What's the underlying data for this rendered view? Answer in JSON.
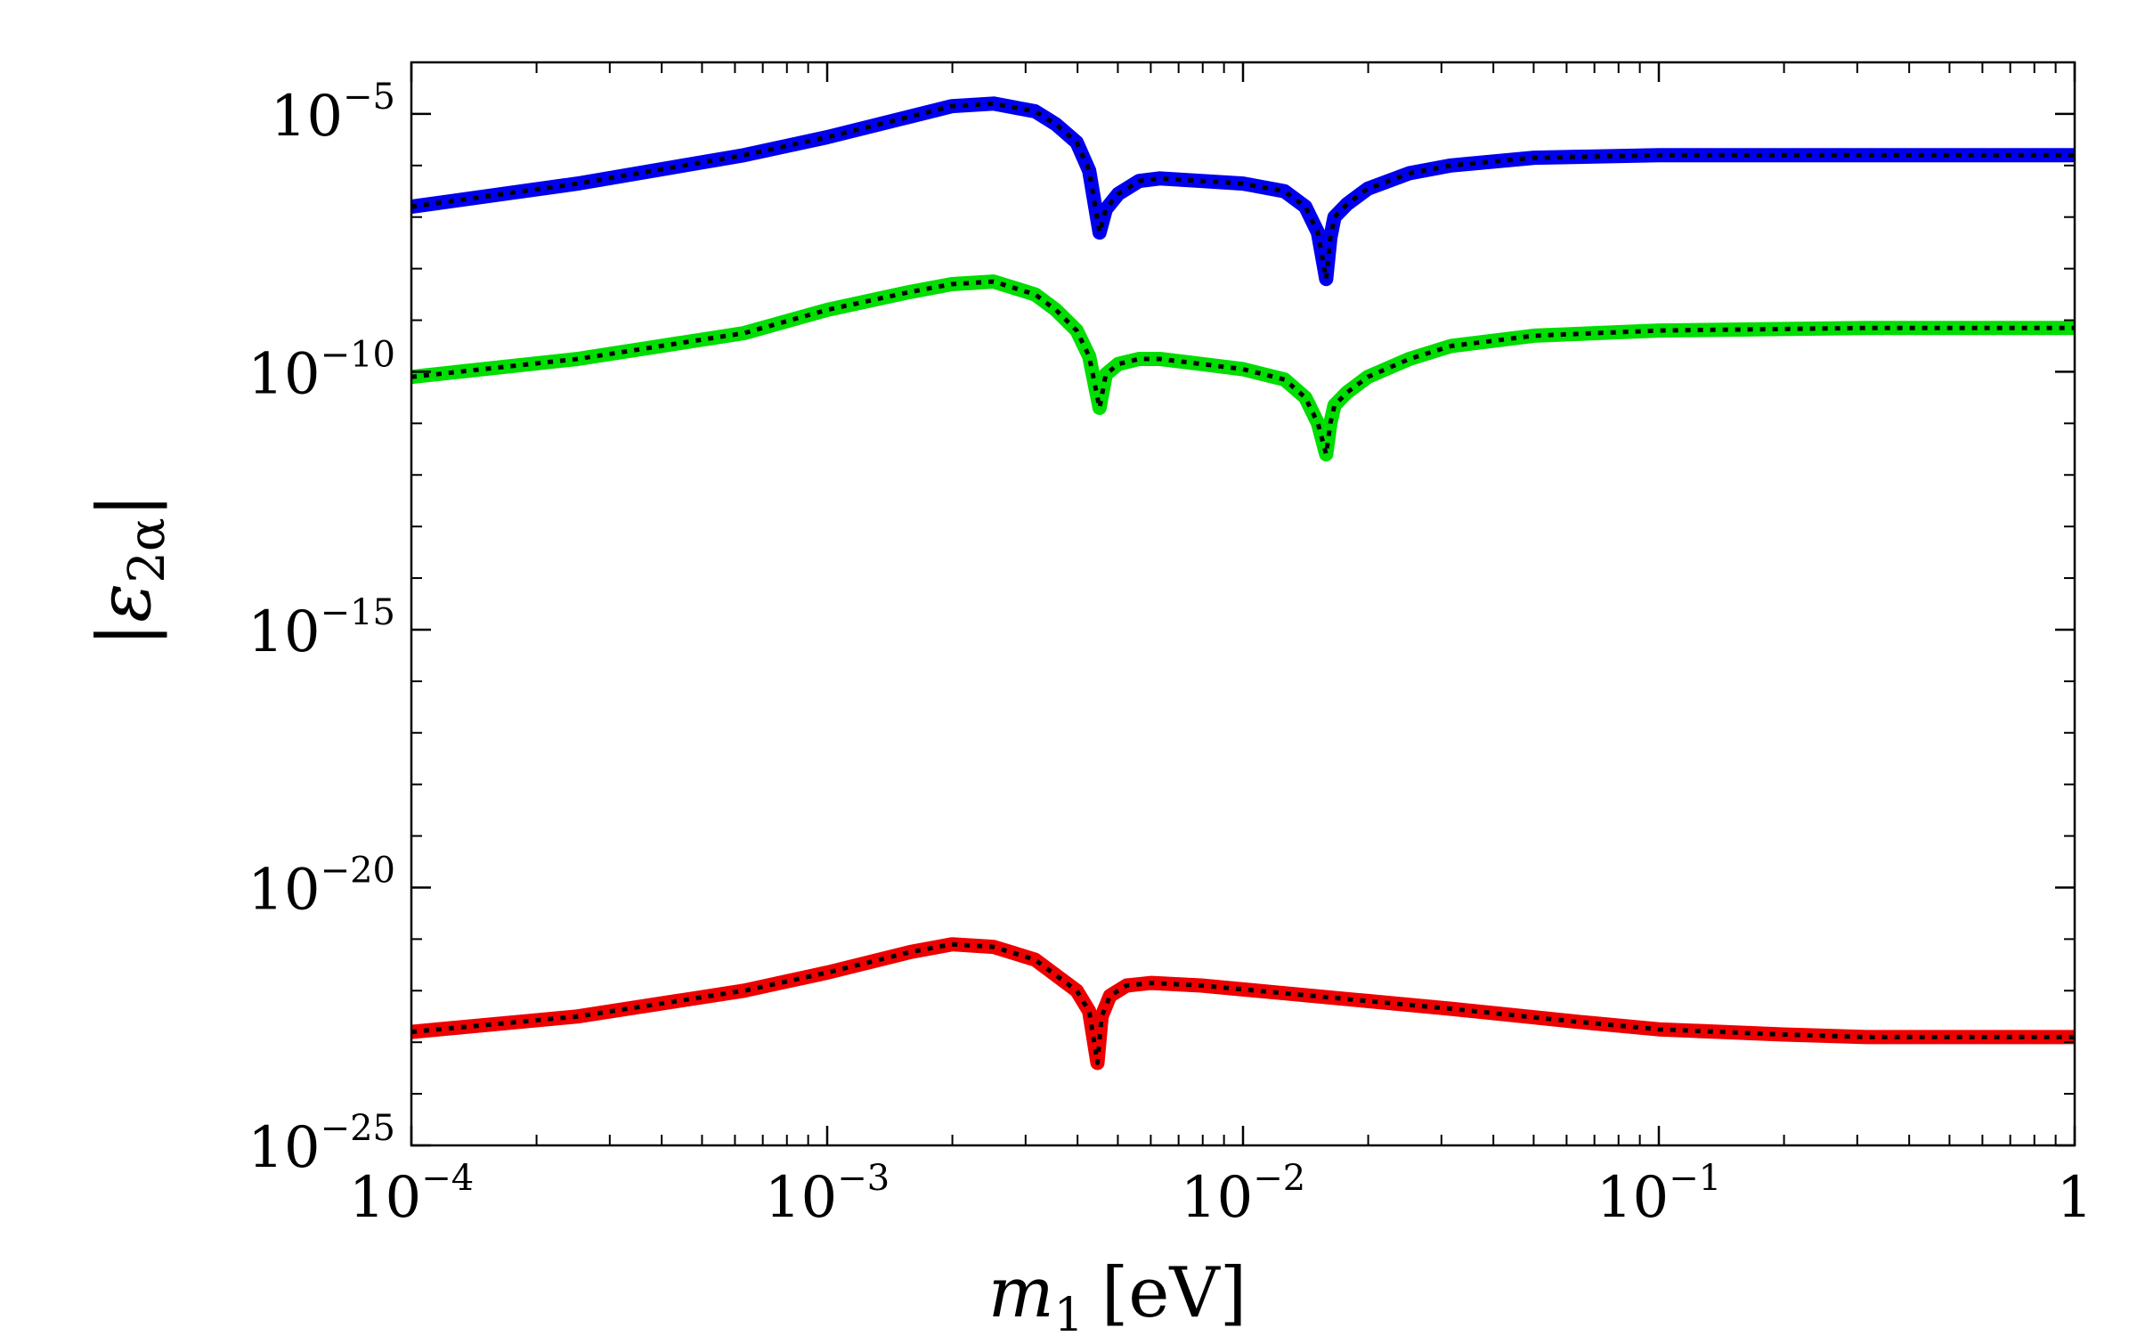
{
  "chart_data": {
    "type": "line",
    "x_scale": "log",
    "y_scale": "log",
    "xlim": [
      0.0001,
      1
    ],
    "ylim_exponent": [
      -25,
      -4
    ],
    "xlabel": {
      "var": "m",
      "sub": "1",
      "unit": "[eV]"
    },
    "ylabel": {
      "var": "ε",
      "sub": "2α"
    },
    "xticks": [
      {
        "base": "10",
        "exp": "−4",
        "value": 0.0001
      },
      {
        "base": "10",
        "exp": "−3",
        "value": 0.001
      },
      {
        "base": "10",
        "exp": "−2",
        "value": 0.01
      },
      {
        "base": "10",
        "exp": "−1",
        "value": 0.1
      },
      {
        "base": "1",
        "exp": "",
        "value": 1
      }
    ],
    "yticks": [
      {
        "base": "10",
        "exp": "−5",
        "value": -5
      },
      {
        "base": "10",
        "exp": "−10",
        "value": -10
      },
      {
        "base": "10",
        "exp": "−15",
        "value": -15
      },
      {
        "base": "10",
        "exp": "−20",
        "value": -20
      },
      {
        "base": "10",
        "exp": "−25",
        "value": -25
      }
    ],
    "series": [
      {
        "name": "blue",
        "color": "#0000ee",
        "log10_x": [
          -4,
          -3.6,
          -3.2,
          -3,
          -2.8,
          -2.7,
          -2.6,
          -2.5,
          -2.45,
          -2.4,
          -2.37,
          -2.345,
          -2.33,
          -2.3,
          -2.25,
          -2.2,
          -2.1,
          -2,
          -1.9,
          -1.85,
          -1.82,
          -1.8,
          -1.79,
          -1.78,
          -1.75,
          -1.7,
          -1.6,
          -1.5,
          -1.3,
          -1,
          -0.5,
          0
        ],
        "log10_y": [
          -6.8,
          -6.35,
          -5.8,
          -5.45,
          -5.05,
          -4.85,
          -4.8,
          -4.95,
          -5.2,
          -5.55,
          -6.1,
          -7.3,
          -6.85,
          -6.55,
          -6.3,
          -6.25,
          -6.3,
          -6.35,
          -6.5,
          -6.8,
          -7.3,
          -8.2,
          -7.4,
          -7.0,
          -6.75,
          -6.45,
          -6.15,
          -6.0,
          -5.85,
          -5.8,
          -5.8,
          -5.8
        ]
      },
      {
        "name": "green",
        "color": "#00dd00",
        "log10_x": [
          -4,
          -3.6,
          -3.2,
          -3,
          -2.8,
          -2.7,
          -2.6,
          -2.5,
          -2.45,
          -2.4,
          -2.37,
          -2.345,
          -2.33,
          -2.3,
          -2.25,
          -2.2,
          -2.1,
          -2,
          -1.9,
          -1.85,
          -1.82,
          -1.8,
          -1.79,
          -1.78,
          -1.75,
          -1.7,
          -1.6,
          -1.5,
          -1.3,
          -1,
          -0.5,
          0
        ],
        "log10_y": [
          -10.1,
          -9.75,
          -9.25,
          -8.8,
          -8.45,
          -8.3,
          -8.25,
          -8.5,
          -8.8,
          -9.2,
          -9.7,
          -10.7,
          -10.05,
          -9.85,
          -9.75,
          -9.75,
          -9.85,
          -9.95,
          -10.15,
          -10.5,
          -11.0,
          -11.6,
          -11.0,
          -10.65,
          -10.4,
          -10.1,
          -9.75,
          -9.5,
          -9.3,
          -9.2,
          -9.15,
          -9.15
        ]
      },
      {
        "name": "red",
        "color": "#ee0000",
        "log10_x": [
          -4,
          -3.6,
          -3.2,
          -3,
          -2.8,
          -2.7,
          -2.6,
          -2.5,
          -2.45,
          -2.4,
          -2.37,
          -2.35,
          -2.34,
          -2.32,
          -2.28,
          -2.22,
          -2.1,
          -1.9,
          -1.7,
          -1.5,
          -1.2,
          -1,
          -0.7,
          -0.5,
          0
        ],
        "log10_y": [
          -22.8,
          -22.5,
          -22.0,
          -21.65,
          -21.25,
          -21.1,
          -21.15,
          -21.4,
          -21.7,
          -22.0,
          -22.4,
          -23.4,
          -22.5,
          -22.1,
          -21.9,
          -21.85,
          -21.9,
          -22.05,
          -22.2,
          -22.35,
          -22.6,
          -22.75,
          -22.85,
          -22.9,
          -22.9
        ]
      }
    ]
  }
}
